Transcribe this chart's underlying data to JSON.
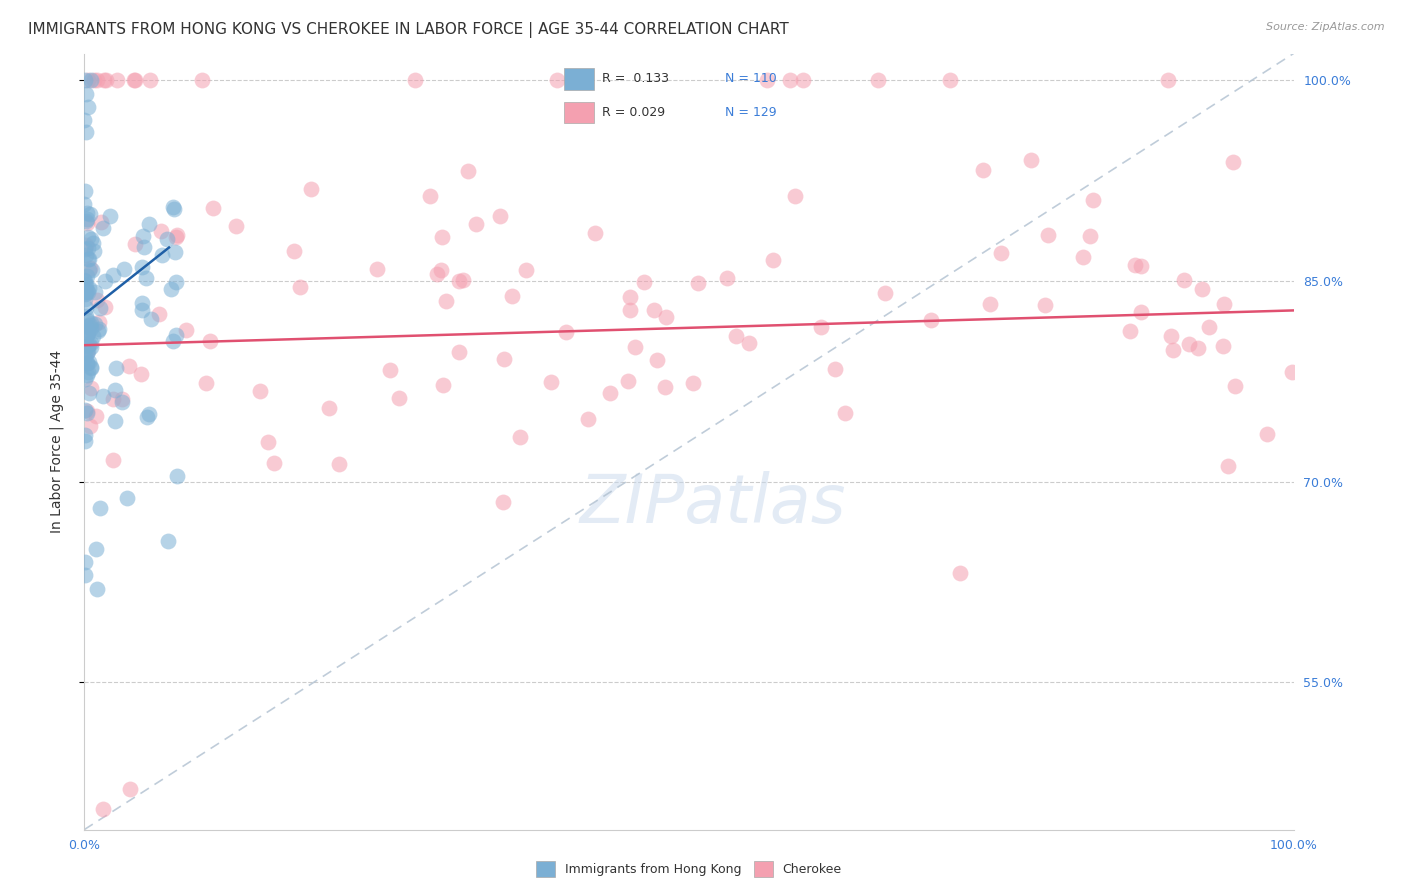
{
  "title": "IMMIGRANTS FROM HONG KONG VS CHEROKEE IN LABOR FORCE | AGE 35-44 CORRELATION CHART",
  "source_text": "Source: ZipAtlas.com",
  "ylabel": "In Labor Force | Age 35-44",
  "xlim": [
    0.0,
    100.0
  ],
  "ylim": [
    44.0,
    102.0
  ],
  "plot_ylim": [
    44.0,
    102.0
  ],
  "yticks": [
    55.0,
    70.0,
    85.0,
    100.0
  ],
  "ytick_labels": [
    "55.0%",
    "70.0%",
    "85.0%",
    "100.0%"
  ],
  "color_blue": "#7BAFD4",
  "color_pink": "#F4A0B0",
  "color_trendline_blue": "#1F5FA6",
  "color_trendline_pink": "#E05070",
  "color_refline": "#B0C0D0",
  "background_color": "#FFFFFF",
  "title_fontsize": 11,
  "tick_fontsize": 9,
  "blue_seed": 12,
  "pink_seed": 77,
  "blue_trend_x0": 0.0,
  "blue_trend_y0": 82.5,
  "blue_trend_x1": 7.0,
  "blue_trend_y1": 87.5,
  "pink_trend_x0": 0.0,
  "pink_trend_y0": 80.2,
  "pink_trend_x1": 100.0,
  "pink_trend_y1": 82.8,
  "ref_line_goes_to_upper_right": true
}
